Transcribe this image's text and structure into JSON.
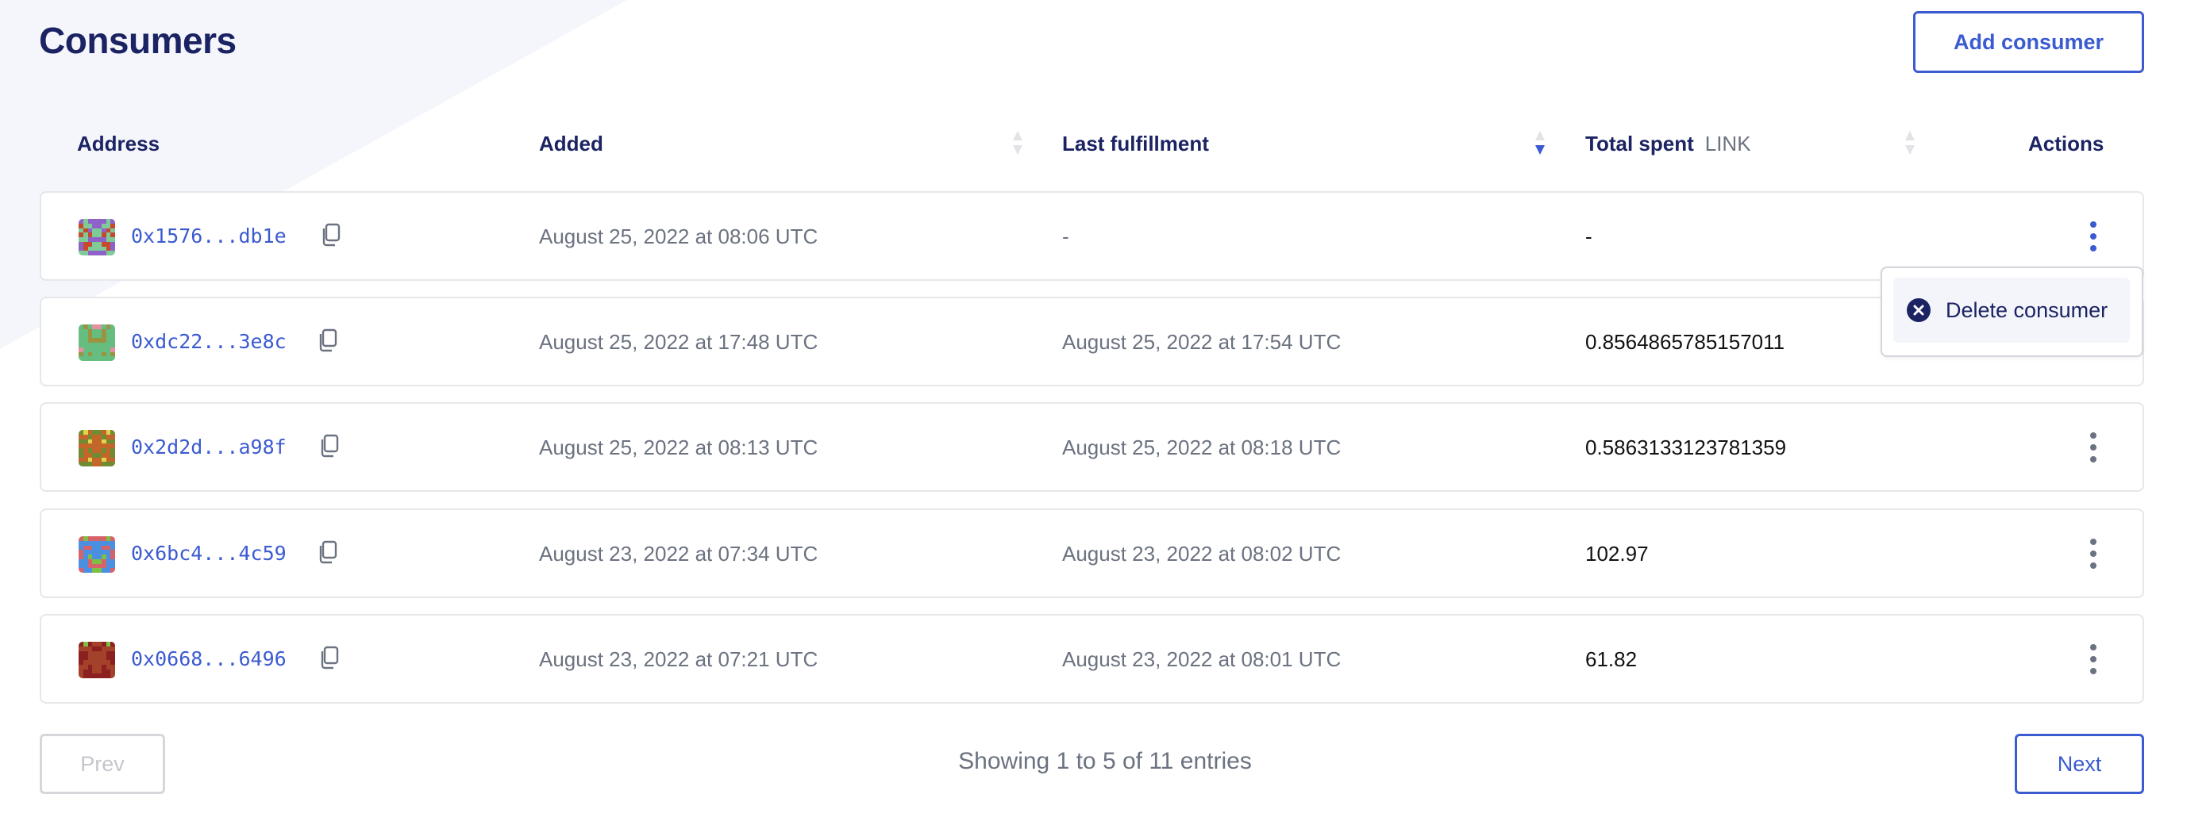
{
  "page": {
    "title": "Consumers",
    "add_button": "Add consumer"
  },
  "colors": {
    "accent": "#3b5bd0",
    "heading": "#1b2363",
    "background_shape": "#f5f6fb"
  },
  "table": {
    "headers": {
      "address": "Address",
      "added": "Added",
      "last_fulfillment": "Last fulfillment",
      "total_spent": "Total spent",
      "total_spent_unit": "LINK",
      "actions": "Actions"
    },
    "sort": {
      "column": "last_fulfillment",
      "direction": "descending"
    },
    "rows": [
      {
        "address": "0x1576...db1e",
        "added": "August 25, 2022 at 08:06 UTC",
        "last_fulfillment": "-",
        "total_spent": "-",
        "avatar_colors": [
          "#7fcb98",
          "#8e62c9",
          "#c7482a"
        ],
        "menu_open": true
      },
      {
        "address": "0xdc22...3e8c",
        "added": "August 25, 2022 at 17:48 UTC",
        "last_fulfillment": "August 25, 2022 at 17:54 UTC",
        "total_spent": "0.8564865785157011",
        "avatar_colors": [
          "#66bd80",
          "#9a9442",
          "#e58fa0"
        ]
      },
      {
        "address": "0x2d2d...a98f",
        "added": "August 25, 2022 at 08:13 UTC",
        "last_fulfillment": "August 25, 2022 at 08:18 UTC",
        "total_spent": "0.5863133123781359",
        "avatar_colors": [
          "#c3662a",
          "#6f8c32",
          "#e3d24e"
        ]
      },
      {
        "address": "0x6bc4...4c59",
        "added": "August 23, 2022 at 07:34 UTC",
        "last_fulfillment": "August 23, 2022 at 08:02 UTC",
        "total_spent": "102.97",
        "avatar_colors": [
          "#4a8fe0",
          "#d6626a",
          "#7dc043"
        ]
      },
      {
        "address": "0x0668...6496",
        "added": "August 23, 2022 at 07:21 UTC",
        "last_fulfillment": "August 23, 2022 at 08:01 UTC",
        "total_spent": "61.82",
        "avatar_colors": [
          "#a3412a",
          "#8c1f1f",
          "#7dbf45"
        ]
      }
    ]
  },
  "menu": {
    "delete_label": "Delete consumer",
    "icon": "close-circle-icon"
  },
  "pagination": {
    "prev": "Prev",
    "next": "Next",
    "summary": "Showing 1 to 5 of 11 entries",
    "prev_disabled": true
  }
}
